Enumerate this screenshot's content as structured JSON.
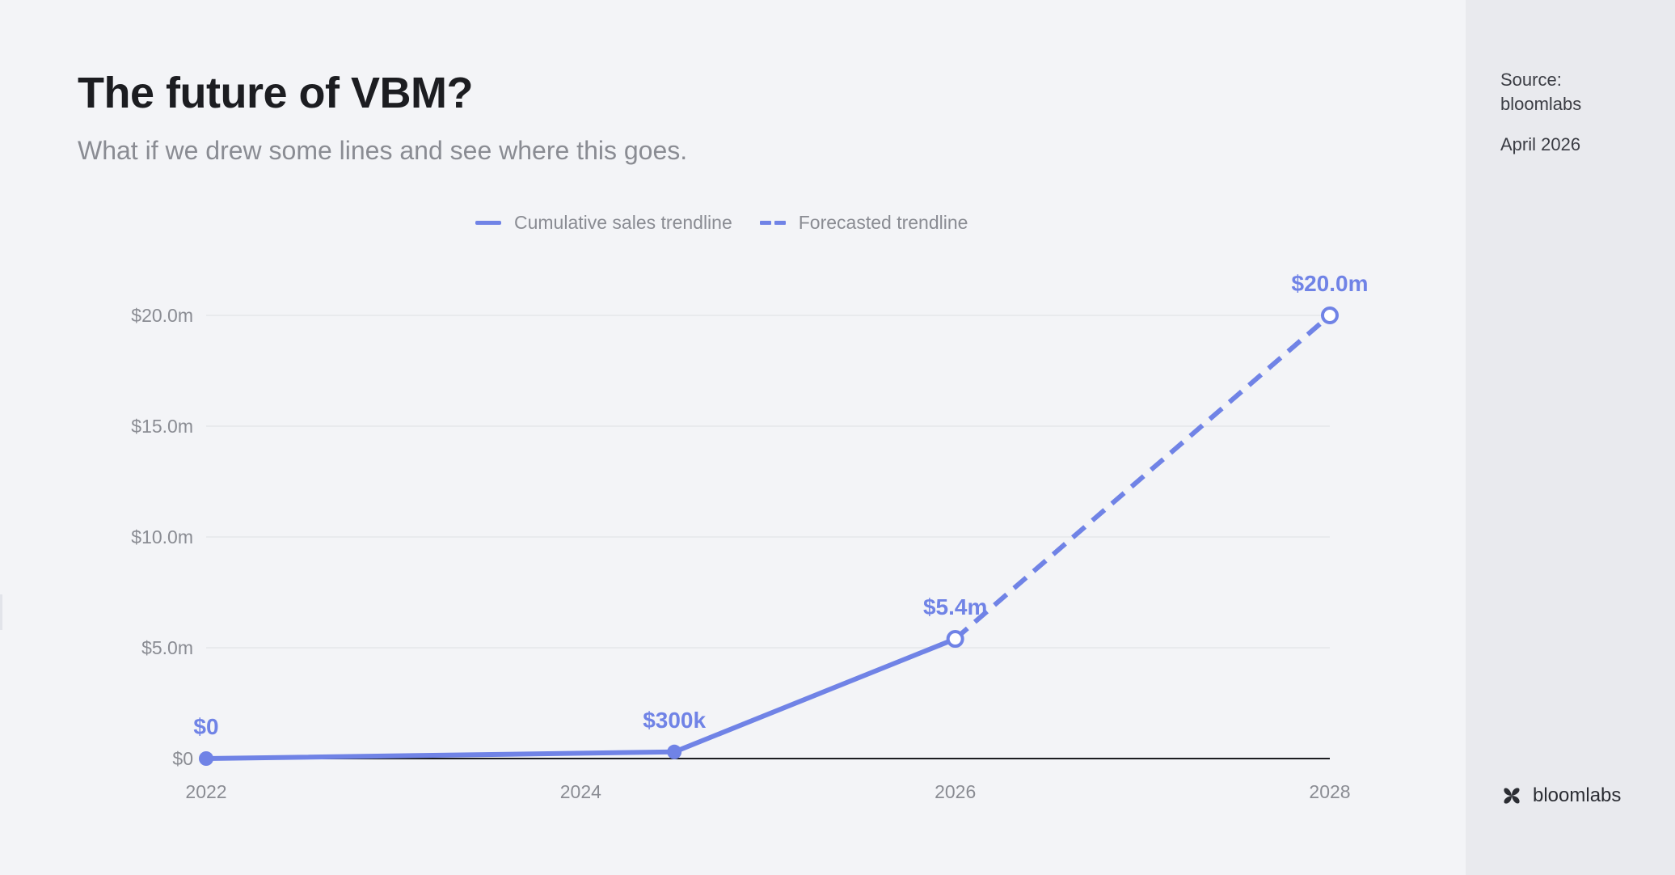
{
  "header": {
    "title": "The future of VBM?",
    "subtitle": "What if we drew some lines and see where this goes."
  },
  "sidebar": {
    "source_label": "Source:",
    "source_name": "bloomlabs",
    "date": "April 2026",
    "brand_name": "bloomlabs",
    "brand_icon": "bloomlabs-logo-icon"
  },
  "colors": {
    "accent": "#7083e6",
    "axis": "#1c1d21",
    "grid": "#e4e6ea",
    "tick_text": "#8a8c93"
  },
  "chart_data": {
    "type": "line",
    "title": "The future of VBM?",
    "subtitle": "What if we drew some lines and see where this goes.",
    "xlabel": "",
    "ylabel": "",
    "xlim": [
      2022,
      2028
    ],
    "ylim": [
      0,
      20
    ],
    "x_ticks": [
      2022,
      2024,
      2026,
      2028
    ],
    "x_tick_labels": [
      "2022",
      "2024",
      "2026",
      "2028"
    ],
    "y_ticks": [
      0,
      5,
      10,
      15,
      20
    ],
    "y_tick_labels": [
      "$0",
      "$5.0m",
      "$10.0m",
      "$15.0m",
      "$20.0m"
    ],
    "grid": true,
    "legend_position": "top-center",
    "series": [
      {
        "name": "Cumulative sales trendline",
        "style": "solid",
        "color": "#7083e6",
        "points": [
          {
            "x": 2022,
            "y": 0,
            "label": "$0",
            "marker": "filled"
          },
          {
            "x": 2024.5,
            "y": 0.3,
            "label": "$300k",
            "marker": "filled"
          },
          {
            "x": 2026,
            "y": 5.4,
            "label": "$5.4m",
            "marker": "hollow"
          }
        ]
      },
      {
        "name": "Forecasted trendline",
        "style": "dashed",
        "color": "#7083e6",
        "points": [
          {
            "x": 2026,
            "y": 5.4,
            "label": "",
            "marker": "none"
          },
          {
            "x": 2028,
            "y": 20,
            "label": "$20.0m",
            "marker": "hollow"
          }
        ]
      }
    ]
  }
}
